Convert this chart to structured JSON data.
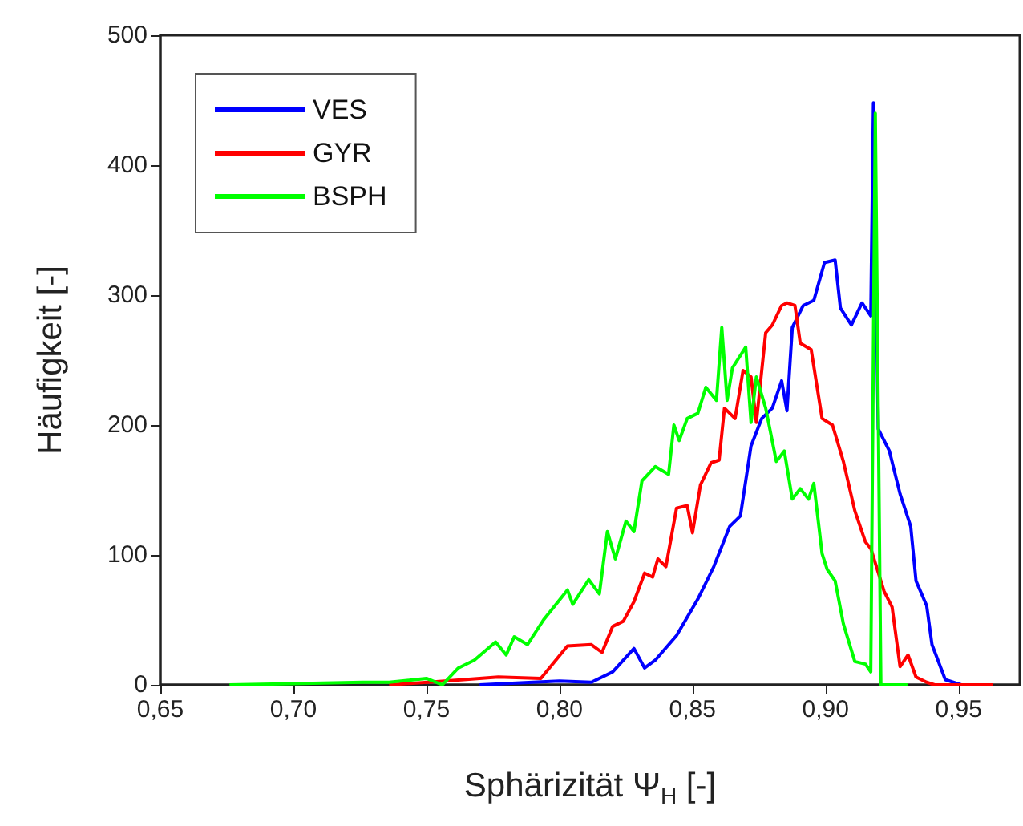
{
  "chart_data": {
    "type": "line",
    "xlabel": "Sphärizität Ψ$_{H}$ [-]",
    "ylabel": "Häufigkeit [-]",
    "xlim": [
      0.65,
      0.973
    ],
    "ylim": [
      0,
      500
    ],
    "xticks": [
      {
        "value": 0.65,
        "label": "0,65"
      },
      {
        "value": 0.7,
        "label": "0,70"
      },
      {
        "value": 0.75,
        "label": "0,75"
      },
      {
        "value": 0.8,
        "label": "0,80"
      },
      {
        "value": 0.85,
        "label": "0,85"
      },
      {
        "value": 0.9,
        "label": "0,90"
      },
      {
        "value": 0.95,
        "label": "0,95"
      }
    ],
    "yticks": [
      0,
      100,
      200,
      300,
      400,
      500
    ],
    "legend": "top left",
    "grid": false,
    "marker": "none",
    "line_style": "solid",
    "series": [
      {
        "name": "VES",
        "color": "#0000ff",
        "x": [
          0.77,
          0.79,
          0.8,
          0.812,
          0.82,
          0.828,
          0.832,
          0.836,
          0.844,
          0.852,
          0.858,
          0.864,
          0.868,
          0.872,
          0.876,
          0.88,
          0.8835,
          0.8855,
          0.8875,
          0.8916,
          0.8956,
          0.8996,
          0.9036,
          0.9056,
          0.9097,
          0.9137,
          0.917,
          0.918,
          0.9198,
          0.924,
          0.928,
          0.932,
          0.934,
          0.938,
          0.94,
          0.945,
          0.951
        ],
        "values": [
          0,
          2,
          3,
          2,
          10,
          28,
          13,
          19,
          38,
          66,
          91,
          122,
          130,
          184,
          205,
          213,
          234,
          211,
          275,
          292,
          296,
          325,
          327,
          290,
          277,
          294,
          284,
          448,
          197,
          180,
          147,
          122,
          80,
          61,
          31,
          4,
          0
        ]
      },
      {
        "name": "GYR",
        "color": "#ff0000",
        "x": [
          0.736,
          0.757,
          0.777,
          0.793,
          0.803,
          0.812,
          0.816,
          0.82,
          0.824,
          0.828,
          0.832,
          0.835,
          0.837,
          0.84,
          0.844,
          0.848,
          0.85,
          0.853,
          0.857,
          0.86,
          0.862,
          0.866,
          0.869,
          0.872,
          0.874,
          0.8775,
          0.88,
          0.8835,
          0.8855,
          0.8885,
          0.8905,
          0.8946,
          0.8987,
          0.9026,
          0.9067,
          0.911,
          0.915,
          0.917,
          0.922,
          0.925,
          0.928,
          0.931,
          0.934,
          0.938,
          0.941,
          0.963
        ],
        "values": [
          0,
          3,
          6,
          5,
          30,
          31,
          25,
          45,
          49,
          64,
          86,
          83,
          97,
          91,
          136,
          138,
          117,
          154,
          171,
          173,
          213,
          205,
          242,
          237,
          202,
          271,
          277,
          292,
          294,
          292,
          263,
          258,
          205,
          200,
          172,
          134,
          110,
          105,
          72,
          60,
          14,
          23,
          6,
          2,
          0,
          0
        ]
      },
      {
        "name": "BSPH",
        "color": "#00ff00",
        "x": [
          0.676,
          0.7,
          0.726,
          0.736,
          0.75,
          0.756,
          0.762,
          0.768,
          0.776,
          0.78,
          0.783,
          0.788,
          0.794,
          0.803,
          0.805,
          0.811,
          0.815,
          0.818,
          0.821,
          0.825,
          0.828,
          0.831,
          0.836,
          0.841,
          0.843,
          0.845,
          0.848,
          0.852,
          0.855,
          0.859,
          0.861,
          0.863,
          0.865,
          0.87,
          0.872,
          0.874,
          0.8775,
          0.8815,
          0.8845,
          0.8875,
          0.8905,
          0.8936,
          0.8956,
          0.8987,
          0.9006,
          0.9036,
          0.9067,
          0.911,
          0.915,
          0.917,
          0.9187,
          0.9208,
          0.931
        ],
        "values": [
          0,
          1,
          2,
          2,
          5,
          0,
          13,
          19,
          33,
          23,
          37,
          31,
          50,
          73,
          62,
          81,
          70,
          118,
          97,
          126,
          118,
          157,
          168,
          162,
          200,
          188,
          205,
          209,
          229,
          219,
          275,
          219,
          244,
          260,
          202,
          237,
          213,
          172,
          180,
          143,
          151,
          143,
          155,
          101,
          89,
          80,
          47,
          18,
          16,
          10,
          440,
          0,
          0
        ]
      }
    ]
  }
}
